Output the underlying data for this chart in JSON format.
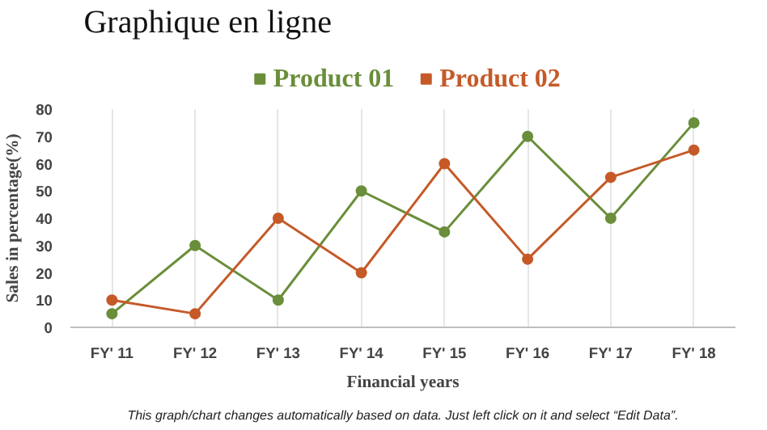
{
  "chart_data": {
    "type": "line",
    "title": "Graphique en ligne",
    "xlabel": "Financial years",
    "ylabel": "Sales in percentage(%)",
    "categories": [
      "FY' 11",
      "FY' 12",
      "FY' 13",
      "FY' 14",
      "FY' 15",
      "FY' 16",
      "FY' 17",
      "FY' 18"
    ],
    "series": [
      {
        "name": "Product 01",
        "color": "#6a8e3a",
        "values": [
          5,
          30,
          10,
          50,
          35,
          70,
          40,
          75
        ]
      },
      {
        "name": "Product 02",
        "color": "#c55a28",
        "values": [
          10,
          5,
          40,
          20,
          60,
          25,
          55,
          65
        ]
      }
    ],
    "ylim": [
      0,
      80
    ],
    "yticks": [
      0,
      10,
      20,
      30,
      40,
      50,
      60,
      70,
      80
    ],
    "grid": "x",
    "legend": "top",
    "marker": "circle",
    "line_style": "solid",
    "annotations": [
      "This graph/chart changes automatically based on data. Just left click on it and select “Edit Data”."
    ]
  }
}
